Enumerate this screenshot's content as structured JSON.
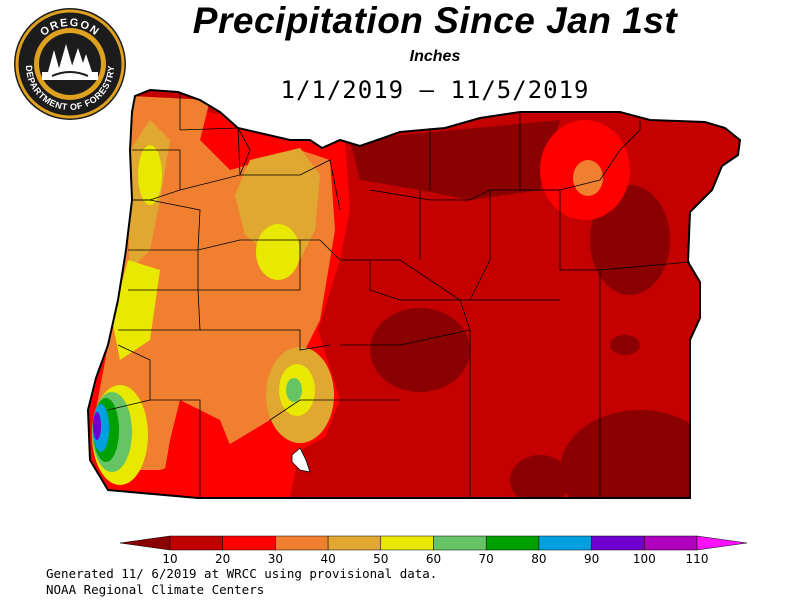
{
  "header": {
    "title": "Precipitation Since Jan 1st",
    "units": "Inches",
    "date_range": "1/1/2019 – 11/5/2019"
  },
  "logo": {
    "text_top": "OREGON",
    "text_bottom": "DEPARTMENT OF FORESTRY"
  },
  "legend": {
    "ticks": [
      "10",
      "20",
      "30",
      "40",
      "50",
      "60",
      "70",
      "80",
      "90",
      "100",
      "110"
    ],
    "colors": [
      "#8b0000",
      "#c00000",
      "#ff0000",
      "#f08030",
      "#e0a830",
      "#e8e800",
      "#66c466",
      "#00a000",
      "#00a0e0",
      "#7000d0",
      "#b000c0",
      "#ff10ff"
    ]
  },
  "footer": {
    "line1": "Generated 11/ 6/2019 at WRCC using provisional data.",
    "line2": "NOAA Regional Climate Centers"
  }
}
